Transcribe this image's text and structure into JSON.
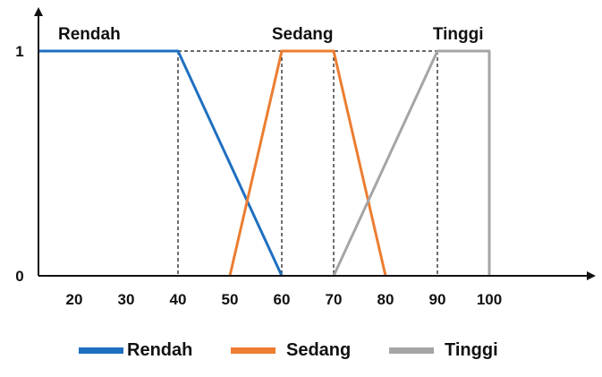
{
  "chart_data": {
    "type": "line",
    "x_ticks": [
      "20",
      "30",
      "40",
      "50",
      "60",
      "70",
      "80",
      "90",
      "100"
    ],
    "y_ticks": [
      "0",
      "1"
    ],
    "xlim": [
      10,
      120
    ],
    "ylim": [
      0,
      1
    ],
    "series": [
      {
        "name": "Rendah",
        "color": "#1F6FC0",
        "points": [
          [
            10,
            1
          ],
          [
            40,
            1
          ],
          [
            60,
            0
          ]
        ]
      },
      {
        "name": "Sedang",
        "color": "#ED7D31",
        "points": [
          [
            50,
            0
          ],
          [
            60,
            1
          ],
          [
            70,
            1
          ],
          [
            80,
            0
          ]
        ]
      },
      {
        "name": "Tinggi",
        "color": "#A5A5A5",
        "points": [
          [
            70,
            0
          ],
          [
            90,
            1
          ],
          [
            100,
            1
          ],
          [
            100,
            0
          ]
        ]
      }
    ],
    "annotations": [
      {
        "text": "Rendah",
        "x": 20,
        "y": 1
      },
      {
        "text": "Sedang",
        "x": 60,
        "y": 1
      },
      {
        "text": "Tinggi",
        "x": 90,
        "y": 1
      }
    ],
    "guides": {
      "vertical_dashed_x": [
        40,
        60,
        70,
        90
      ],
      "horizontal_dashed_y": 1
    },
    "legend": {
      "placement": "bottom",
      "entries": [
        "Rendah",
        "Sedang",
        "Tinggi"
      ]
    },
    "grid": false
  }
}
